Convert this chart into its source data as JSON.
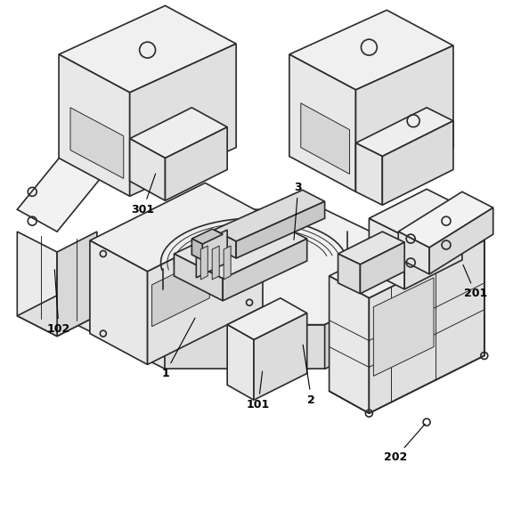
{
  "bg_color": "#ffffff",
  "line_color": "#2a2a2a",
  "lw": 1.2,
  "tlw": 0.7,
  "fig_w": 5.76,
  "fig_h": 5.75
}
